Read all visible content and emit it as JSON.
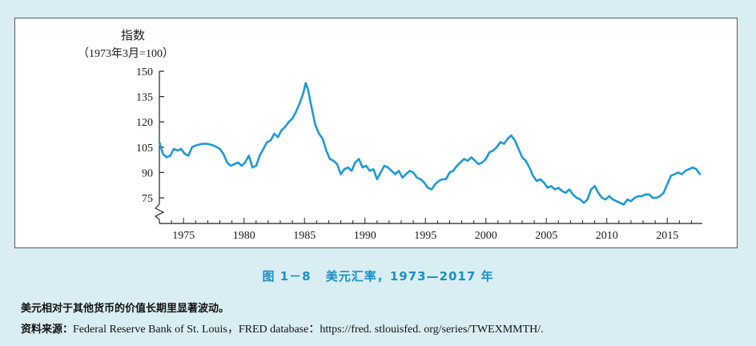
{
  "chart_data": {
    "type": "line",
    "ylabel": "指数",
    "ylabel_sub": "（1973年3月=100）",
    "ylim": [
      70,
      150
    ],
    "yticks": [
      75,
      90,
      105,
      120,
      135,
      150
    ],
    "xlim": [
      1973,
      2017.9
    ],
    "xticks": [
      1975,
      1980,
      1985,
      1990,
      1995,
      2000,
      2005,
      2010,
      2015
    ],
    "y_axis_break": true,
    "grid": false,
    "series": [
      {
        "color": "#1e9ad6",
        "x": [
          1973.0,
          1973.3,
          1973.6,
          1973.9,
          1974.2,
          1974.5,
          1974.8,
          1975.1,
          1975.4,
          1975.7,
          1976.0,
          1976.5,
          1977.0,
          1977.5,
          1978.0,
          1978.3,
          1978.6,
          1978.9,
          1979.2,
          1979.5,
          1979.8,
          1980.1,
          1980.4,
          1980.7,
          1981.0,
          1981.3,
          1981.6,
          1981.9,
          1982.2,
          1982.5,
          1982.8,
          1983.1,
          1983.4,
          1983.7,
          1984.0,
          1984.3,
          1984.6,
          1984.9,
          1985.1,
          1985.3,
          1985.6,
          1985.9,
          1986.2,
          1986.5,
          1986.8,
          1987.1,
          1987.4,
          1987.7,
          1988.0,
          1988.3,
          1988.6,
          1988.9,
          1989.2,
          1989.5,
          1989.8,
          1990.1,
          1990.4,
          1990.7,
          1991.0,
          1991.3,
          1991.6,
          1991.9,
          1992.2,
          1992.5,
          1992.8,
          1993.1,
          1993.4,
          1993.7,
          1994.0,
          1994.3,
          1994.6,
          1994.9,
          1995.2,
          1995.5,
          1995.8,
          1996.1,
          1996.4,
          1996.7,
          1997.0,
          1997.3,
          1997.6,
          1997.9,
          1998.2,
          1998.5,
          1998.8,
          1999.1,
          1999.4,
          1999.7,
          2000.0,
          2000.3,
          2000.6,
          2000.9,
          2001.2,
          2001.5,
          2001.8,
          2002.1,
          2002.4,
          2002.7,
          2003.0,
          2003.3,
          2003.6,
          2003.9,
          2004.2,
          2004.5,
          2004.8,
          2005.1,
          2005.4,
          2005.7,
          2006.0,
          2006.3,
          2006.6,
          2006.9,
          2007.2,
          2007.5,
          2007.8,
          2008.1,
          2008.4,
          2008.7,
          2009.0,
          2009.3,
          2009.6,
          2009.9,
          2010.2,
          2010.5,
          2010.8,
          2011.1,
          2011.4,
          2011.7,
          2012.0,
          2012.3,
          2012.6,
          2012.9,
          2013.2,
          2013.5,
          2013.8,
          2014.1,
          2014.4,
          2014.7,
          2015.0,
          2015.3,
          2015.6,
          2015.9,
          2016.2,
          2016.5,
          2016.8,
          2017.1,
          2017.4,
          2017.7
        ],
        "values": [
          108,
          101,
          99,
          100,
          104,
          103,
          104,
          101,
          100,
          105,
          106,
          107,
          107,
          106,
          104,
          101,
          96,
          94,
          95,
          96,
          94,
          96,
          100,
          93,
          94,
          100,
          104,
          108,
          109,
          113,
          111,
          115,
          117,
          120,
          122,
          126,
          131,
          137,
          143,
          139,
          128,
          118,
          113,
          110,
          103,
          98,
          97,
          95,
          89,
          92,
          93,
          91,
          96,
          98,
          93,
          94,
          91,
          92,
          86,
          90,
          94,
          93,
          91,
          89,
          91,
          87,
          89,
          91,
          90,
          87,
          86,
          84,
          81,
          80,
          83,
          85,
          86,
          86,
          90,
          91,
          94,
          96,
          98,
          97,
          99,
          97,
          95,
          96,
          98,
          102,
          103,
          105,
          108,
          107,
          110,
          112,
          109,
          104,
          99,
          97,
          93,
          88,
          85,
          86,
          84,
          81,
          82,
          80,
          81,
          79,
          78,
          80,
          77,
          75,
          74,
          72,
          74,
          80,
          82,
          78,
          75,
          74,
          76,
          74,
          73,
          72,
          71,
          74,
          73,
          75,
          76,
          76,
          77,
          77,
          75,
          75,
          76,
          78,
          83,
          88,
          89,
          90,
          89,
          91,
          92,
          93,
          92,
          89
        ]
      }
    ],
    "caption": {
      "figure_no": "图 1－8",
      "title": "美元汇率，1973—2017 年"
    },
    "note": "美元相对于其他货币的价值长期里显著波动。",
    "source_label": "资料来源：",
    "source_text": "Federal Reserve Bank of St. Louis，FRED database：https://fred. stlouisfed. org/series/TWEXMMTH/."
  }
}
